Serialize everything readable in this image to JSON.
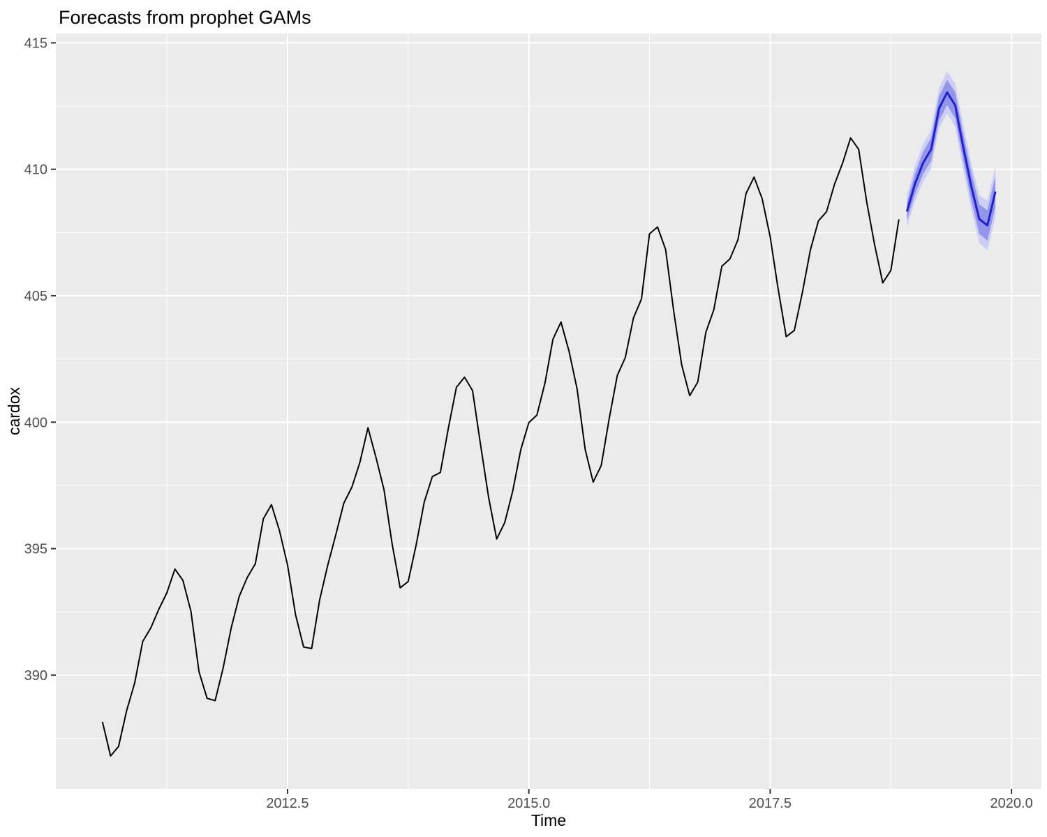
{
  "chart_data": {
    "type": "line",
    "title": "Forecasts from prophet GAMs",
    "xlabel": "Time",
    "ylabel": "cardox",
    "xlim": [
      2010.1,
      2020.31
    ],
    "ylim": [
      385.5,
      415.37
    ],
    "grid": true,
    "legend_position": "none",
    "panel_bg": "#ebebeb",
    "grid_color": "#ffffff",
    "tick_label_color": "#4d4d4d",
    "tick_mark_color": "#333333",
    "x_major_ticks": [
      2012.5,
      2015.0,
      2017.5,
      2020.0
    ],
    "x_tick_labels": [
      "2012.5",
      "2015.0",
      "2017.5",
      "2020.0"
    ],
    "x_minor_ticks": [
      2011.25,
      2013.75,
      2016.25,
      2018.75
    ],
    "y_major_ticks": [
      390,
      395,
      400,
      405,
      410,
      415
    ],
    "y_tick_labels": [
      "390",
      "395",
      "400",
      "405",
      "410",
      "415"
    ],
    "y_minor_ticks": [
      387.5,
      392.5,
      397.5,
      402.5,
      407.5,
      412.5
    ],
    "series": [
      {
        "name": "observed",
        "color": "#000000",
        "stroke_width": 2,
        "start_time": {
          "year": 2010,
          "month": 8
        },
        "frequency": 12,
        "values": [
          388.15,
          386.8,
          387.18,
          388.59,
          389.68,
          391.33,
          391.86,
          392.6,
          393.25,
          394.19,
          393.74,
          392.51,
          390.13,
          389.08,
          388.99,
          390.28,
          391.86,
          393.12,
          393.86,
          394.4,
          396.18,
          396.74,
          395.71,
          394.36,
          392.39,
          391.11,
          391.05,
          392.98,
          394.34,
          395.55,
          396.8,
          397.43,
          398.41,
          399.78,
          398.6,
          397.32,
          395.2,
          393.45,
          393.7,
          395.16,
          396.84,
          397.85,
          398.01,
          399.77,
          401.38,
          401.78,
          401.25,
          399.1,
          397.03,
          395.38,
          396.03,
          397.28,
          398.91,
          399.98,
          400.28,
          401.54,
          403.28,
          403.96,
          402.8,
          401.31,
          398.93,
          397.63,
          398.29,
          400.16,
          401.85,
          402.56,
          404.12,
          404.87,
          407.45,
          407.72,
          406.83,
          404.41,
          402.27,
          401.05,
          401.59,
          403.55,
          404.45,
          406.17,
          406.46,
          407.22,
          409.04,
          409.69,
          408.84,
          407.33,
          405.25,
          403.38,
          403.63,
          405.12,
          406.81,
          407.96,
          408.32,
          409.41,
          410.24,
          411.24,
          410.79,
          408.71,
          406.99,
          405.51,
          406.0,
          408.02
        ]
      },
      {
        "name": "forecast-mean",
        "color": "#2020d0",
        "stroke_width": 3,
        "start_time": {
          "year": 2018,
          "month": 12
        },
        "frequency": 12,
        "values": [
          408.33,
          409.42,
          410.25,
          410.78,
          412.41,
          413.04,
          412.53,
          410.88,
          409.33,
          408.03,
          407.78,
          409.12
        ]
      }
    ],
    "ribbons": [
      {
        "name": "interval-95",
        "color": "#cdcef5",
        "start_time": {
          "year": 2018,
          "month": 12
        },
        "frequency": 12,
        "lower": [
          407.73,
          408.71,
          409.51,
          410.01,
          411.61,
          412.21,
          411.67,
          409.99,
          408.41,
          407.08,
          406.8,
          408.11
        ],
        "upper": [
          408.93,
          410.13,
          410.99,
          411.55,
          413.21,
          413.87,
          413.39,
          411.77,
          410.25,
          408.98,
          408.76,
          410.13
        ]
      },
      {
        "name": "interval-80",
        "color": "#9396e8",
        "start_time": {
          "year": 2018,
          "month": 12
        },
        "frequency": 12,
        "lower": [
          407.98,
          409.0,
          409.81,
          410.32,
          411.93,
          412.54,
          412.01,
          410.34,
          408.77,
          407.45,
          407.18,
          408.5
        ],
        "upper": [
          408.68,
          409.84,
          410.69,
          411.24,
          412.89,
          413.54,
          413.05,
          411.42,
          409.89,
          408.61,
          408.38,
          409.74
        ]
      }
    ]
  }
}
